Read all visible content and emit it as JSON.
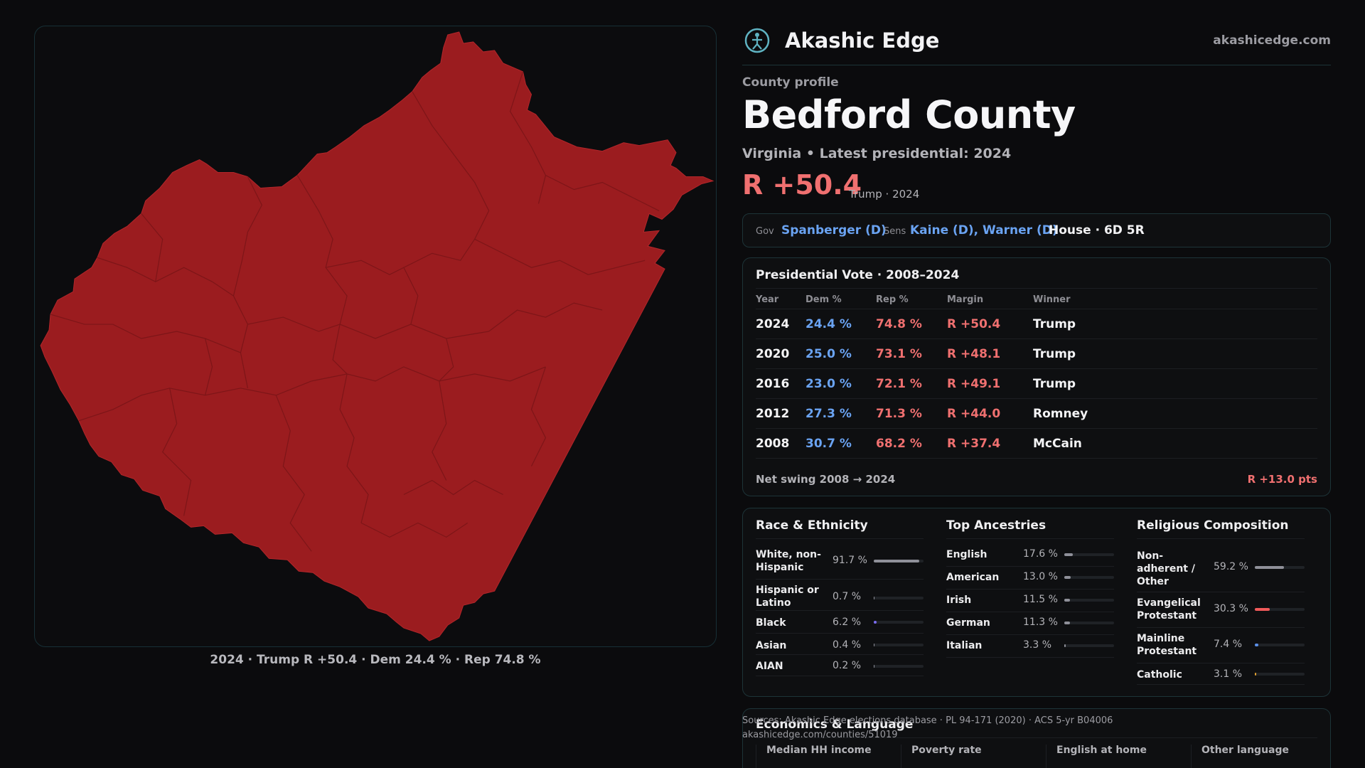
{
  "map": {
    "caption": "2024 · Trump R +50.4 · Dem 24.4 % · Rep 74.8 %",
    "fill_color": "#9b1c1f",
    "border_color": "#7d1518"
  },
  "brand": {
    "name": "Akashic Edge",
    "url": "akashicedge.com",
    "logo_icon": "globe-figure-icon"
  },
  "county": {
    "label": "County profile",
    "name": "Bedford County",
    "subtitle": "Virginia • Latest presidential: 2024",
    "margin": "R +50.4",
    "margin_note": "Trump · 2024"
  },
  "officials": {
    "gov_label": "Gov",
    "gov": "Spanberger (D)",
    "sens_label": "Sens",
    "sens": "Kaine (D), Warner (D)",
    "house": "House · 6D 5R"
  },
  "presidential": {
    "title": "Presidential Vote · 2008–2024",
    "headers": [
      "Year",
      "Dem %",
      "Rep %",
      "Margin",
      "Winner"
    ],
    "rows": [
      {
        "year": "2024",
        "dem": "24.4 %",
        "rep": "74.8 %",
        "margin": "R +50.4",
        "winner": "Trump"
      },
      {
        "year": "2020",
        "dem": "25.0 %",
        "rep": "73.1 %",
        "margin": "R +48.1",
        "winner": "Trump"
      },
      {
        "year": "2016",
        "dem": "23.0 %",
        "rep": "72.1 %",
        "margin": "R +49.1",
        "winner": "Trump"
      },
      {
        "year": "2012",
        "dem": "27.3 %",
        "rep": "71.3 %",
        "margin": "R +44.0",
        "winner": "Romney"
      },
      {
        "year": "2008",
        "dem": "30.7 %",
        "rep": "68.2 %",
        "margin": "R +37.4",
        "winner": "McCain"
      }
    ],
    "swing_label": "Net swing 2008 → 2024",
    "swing_value": "R +13.0 pts"
  },
  "race": {
    "title": "Race & Ethnicity",
    "items": [
      {
        "label": "White, non-Hispanic",
        "pct": "91.7 %",
        "value": 91.7,
        "color": "#8f9099"
      },
      {
        "label": "Hispanic or Latino",
        "pct": "0.7 %",
        "value": 0.7,
        "color": "#8f9099"
      },
      {
        "label": "Black",
        "pct": "6.2 %",
        "value": 6.2,
        "color": "#7a6cf0"
      },
      {
        "label": "Asian",
        "pct": "0.4 %",
        "value": 0.4,
        "color": "#8f9099"
      },
      {
        "label": "AIAN",
        "pct": "0.2 %",
        "value": 0.2,
        "color": "#8f9099"
      }
    ]
  },
  "ancestry": {
    "title": "Top Ancestries",
    "items": [
      {
        "label": "English",
        "pct": "17.6 %",
        "value": 17.6,
        "color": "#8f9099"
      },
      {
        "label": "American",
        "pct": "13.0 %",
        "value": 13.0,
        "color": "#8f9099"
      },
      {
        "label": "Irish",
        "pct": "11.5 %",
        "value": 11.5,
        "color": "#8f9099"
      },
      {
        "label": "German",
        "pct": "11.3 %",
        "value": 11.3,
        "color": "#8f9099"
      },
      {
        "label": "Italian",
        "pct": "3.3 %",
        "value": 3.3,
        "color": "#8f9099"
      }
    ]
  },
  "religion": {
    "title": "Religious Composition",
    "items": [
      {
        "label": "Non-adherent / Other",
        "pct": "59.2 %",
        "value": 59.2,
        "color": "#8f9099"
      },
      {
        "label": "Evangelical Protestant",
        "pct": "30.3 %",
        "value": 30.3,
        "color": "#f05a5a"
      },
      {
        "label": "Mainline Protestant",
        "pct": "7.4 %",
        "value": 7.4,
        "color": "#5b8fe8"
      },
      {
        "label": "Catholic",
        "pct": "3.1 %",
        "value": 3.1,
        "color": "#e0a030"
      }
    ]
  },
  "economics": {
    "title": "Economics & Language",
    "headers": [
      "Median HH income",
      "Poverty rate",
      "English at home",
      "Other language"
    ]
  },
  "sources": {
    "line1": "Sources: Akashic Edge elections database · PL 94-171 (2020) · ACS 5-yr B04006",
    "line2": "akashicedge.com/counties/51019"
  }
}
